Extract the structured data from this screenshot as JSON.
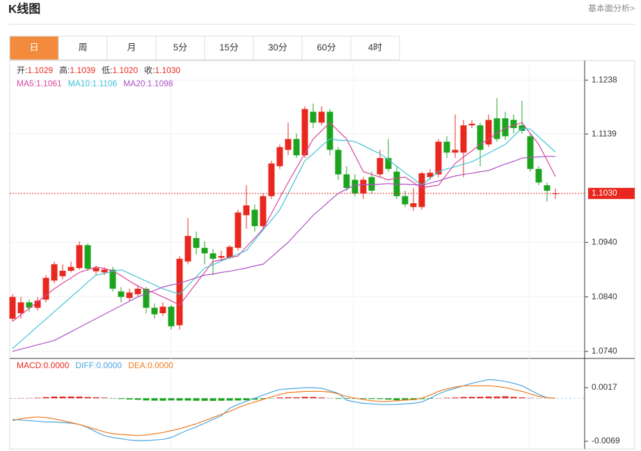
{
  "header": {
    "title": "K线图",
    "link": "基本面分析>"
  },
  "tabs": [
    "日",
    "周",
    "月",
    "5分",
    "15分",
    "30分",
    "60分",
    "4时"
  ],
  "selected_tab": 0,
  "chart_data": [
    {
      "type": "candlestick",
      "info": [
        {
          "label": "开:",
          "value": "1.1029"
        },
        {
          "label": "高:",
          "value": "1.1039"
        },
        {
          "label": "低:",
          "value": "1.1020"
        },
        {
          "label": "收:",
          "value": "1.1030"
        }
      ],
      "ma_info": [
        {
          "label": "MA5: ",
          "value": "1.1061",
          "color": "#d9469b"
        },
        {
          "label": "MA10: ",
          "value": "1.1106",
          "color": "#3fc2d6"
        },
        {
          "label": "MA20: ",
          "value": "1.1098",
          "color": "#b04fc6"
        }
      ],
      "up_color": "#e8281e",
      "down_color": "#1da41f",
      "open": [
        1.08,
        1.081,
        1.083,
        1.082,
        1.0835,
        1.087,
        1.0878,
        1.0888,
        1.0893,
        1.0935,
        1.0887,
        1.0885,
        1.089,
        1.085,
        1.0838,
        1.0845,
        1.0855,
        1.082,
        1.081,
        1.0822,
        1.0788,
        1.0905,
        1.0948,
        1.093,
        1.092,
        1.0912,
        1.0912,
        1.093,
        1.099,
        1.1,
        1.097,
        1.1025,
        1.108,
        1.111,
        1.113,
        1.11,
        1.118,
        1.116,
        1.118,
        1.111,
        1.1065,
        1.1055,
        1.103,
        1.106,
        1.1065,
        1.1095,
        1.107,
        1.1025,
        1.1005,
        1.1005,
        1.106,
        1.1065,
        1.1125,
        1.1105,
        1.1105,
        1.1155,
        1.1155,
        1.112,
        1.1168,
        1.1168,
        1.1165,
        1.1155,
        1.1135,
        1.1075,
        1.1045,
        1.1029
      ],
      "high": [
        1.0845,
        1.084,
        1.0835,
        1.084,
        1.088,
        1.0905,
        1.09,
        1.0905,
        1.0942,
        1.0938,
        1.0897,
        1.0895,
        1.0895,
        1.0858,
        1.0855,
        1.0862,
        1.0858,
        1.0828,
        1.083,
        1.0825,
        1.0915,
        1.0985,
        1.096,
        1.0942,
        1.0928,
        1.0925,
        1.0935,
        1.1,
        1.1045,
        1.101,
        1.103,
        1.109,
        1.112,
        1.116,
        1.114,
        1.119,
        1.1195,
        1.119,
        1.1185,
        1.1115,
        1.108,
        1.1065,
        1.106,
        1.107,
        1.111,
        1.113,
        1.108,
        1.1035,
        1.104,
        1.107,
        1.1075,
        1.113,
        1.1135,
        1.1175,
        1.1165,
        1.1165,
        1.116,
        1.1175,
        1.1205,
        1.118,
        1.1175,
        1.12,
        1.114,
        1.108,
        1.105,
        1.1039
      ],
      "low": [
        1.0795,
        1.08,
        1.0812,
        1.0815,
        1.083,
        1.0865,
        1.0872,
        1.0885,
        1.089,
        1.0888,
        1.088,
        1.088,
        1.085,
        1.083,
        1.0833,
        1.084,
        1.081,
        1.08,
        1.0805,
        1.078,
        1.078,
        1.09,
        1.0918,
        1.09,
        1.088,
        1.0905,
        1.091,
        1.0925,
        1.0965,
        1.096,
        1.0965,
        1.102,
        1.1075,
        1.11,
        1.1095,
        1.1095,
        1.115,
        1.1155,
        1.11,
        1.1055,
        1.1035,
        1.1025,
        1.102,
        1.103,
        1.106,
        1.107,
        1.102,
        1.1005,
        1.0998,
        1.1,
        1.1055,
        1.106,
        1.1095,
        1.1095,
        1.106,
        1.115,
        1.108,
        1.1115,
        1.1125,
        1.1128,
        1.114,
        1.114,
        1.107,
        1.1045,
        1.1015,
        1.102
      ],
      "close": [
        1.084,
        1.083,
        1.082,
        1.0833,
        1.0875,
        1.09,
        1.0888,
        1.0895,
        1.0935,
        1.0892,
        1.0893,
        1.089,
        1.0855,
        1.084,
        1.0848,
        1.0855,
        1.082,
        1.0808,
        1.0822,
        1.0786,
        1.091,
        1.0952,
        1.093,
        1.092,
        1.091,
        1.0915,
        1.0932,
        1.0995,
        1.1008,
        1.097,
        1.1025,
        1.1085,
        1.1115,
        1.113,
        1.11,
        1.1185,
        1.116,
        1.118,
        1.111,
        1.1065,
        1.104,
        1.103,
        1.1055,
        1.1035,
        1.1095,
        1.1075,
        1.1025,
        1.101,
        1.1012,
        1.1067,
        1.1068,
        1.1125,
        1.1105,
        1.111,
        1.1155,
        1.1158,
        1.111,
        1.1165,
        1.113,
        1.1135,
        1.115,
        1.1145,
        1.1075,
        1.105,
        1.1035,
        1.103
      ],
      "series": [
        {
          "name": "MA5",
          "color": "#d9469b",
          "values": [
            1.0795,
            1.0807,
            1.0819,
            1.0831,
            1.0843,
            1.0855,
            1.0865,
            1.0875,
            1.0885,
            1.089,
            1.0895,
            1.0892,
            1.0888,
            1.0879,
            1.0869,
            1.086,
            1.0853,
            1.0847,
            1.084,
            1.0833,
            1.0825,
            1.0845,
            1.0865,
            1.0885,
            1.0905,
            1.0908,
            1.0912,
            1.0915,
            1.0932,
            1.0948,
            1.0965,
            1.0993,
            1.1022,
            1.105,
            1.1077,
            1.1103,
            1.113,
            1.1145,
            1.116,
            1.1145,
            1.113,
            1.11,
            1.107,
            1.1065,
            1.106,
            1.1055,
            1.1058,
            1.106,
            1.105,
            1.104,
            1.1043,
            1.1045,
            1.1065,
            1.1085,
            1.1097,
            1.1108,
            1.112,
            1.113,
            1.114,
            1.115,
            1.1155,
            1.116,
            1.114,
            1.112,
            1.1091,
            1.1061
          ]
        },
        {
          "name": "MA10",
          "color": "#3fc2d6",
          "values": [
            1.0745,
            1.0759,
            1.0772,
            1.0786,
            1.0799,
            1.0813,
            1.0826,
            1.084,
            1.0853,
            1.0867,
            1.088,
            1.0883,
            1.0887,
            1.089,
            1.0883,
            1.0876,
            1.0869,
            1.0862,
            1.0855,
            1.085,
            1.0845,
            1.0861,
            1.0877,
            1.0893,
            1.0899,
            1.0906,
            1.0912,
            1.0919,
            1.0925,
            1.0944,
            1.0963,
            1.0981,
            1.1,
            1.103,
            1.106,
            1.109,
            1.1103,
            1.1117,
            1.113,
            1.1128,
            1.1127,
            1.1125,
            1.1118,
            1.111,
            1.1103,
            1.1092,
            1.108,
            1.1068,
            1.1057,
            1.1045,
            1.1058,
            1.107,
            1.1075,
            1.1079,
            1.1084,
            1.1088,
            1.1096,
            1.1104,
            1.1112,
            1.112,
            1.1135,
            1.115,
            1.1148,
            1.1134,
            1.112,
            1.1106
          ]
        },
        {
          "name": "MA20",
          "color": "#b04fc6",
          "values": [
            1.074,
            1.0744,
            1.0748,
            1.0752,
            1.0756,
            1.076,
            1.0768,
            1.0776,
            1.0784,
            1.0792,
            1.08,
            1.0808,
            1.0816,
            1.0824,
            1.0832,
            1.084,
            1.0846,
            1.0852,
            1.0858,
            1.0862,
            1.0865,
            1.087,
            1.0875,
            1.088,
            1.0882,
            1.0885,
            1.0887,
            1.089,
            1.0893,
            1.0897,
            1.09,
            1.0913,
            1.0927,
            1.094,
            1.0957,
            1.0973,
            1.099,
            1.1003,
            1.1017,
            1.103,
            1.1038,
            1.1045,
            1.1046,
            1.1046,
            1.1047,
            1.1048,
            1.1047,
            1.1047,
            1.1046,
            1.1045,
            1.1049,
            1.1053,
            1.1058,
            1.1062,
            1.1065,
            1.1067,
            1.107,
            1.1072,
            1.1078,
            1.1084,
            1.1089,
            1.1095,
            1.1096,
            1.1097,
            1.1098,
            1.1098
          ]
        }
      ],
      "ylim": [
        1.0727,
        1.1274
      ],
      "yticks": [
        1.1238,
        1.1139,
        {
          "value": 1.094,
          "label": "1.0940"
        },
        {
          "value": 1.084,
          "label": "1.0840"
        },
        {
          "value": 1.074,
          "label": "1.0740"
        }
      ],
      "last_price": {
        "value": 1.103,
        "label": "1.1030",
        "color": "#e8281e"
      },
      "grid": true
    },
    {
      "type": "macd",
      "info": [
        {
          "label": "MACD:",
          "value": "0.0000",
          "color": "#e8281e"
        },
        {
          "label": "DIFF:",
          "value": "0.0000",
          "color": "#4aa6e0"
        },
        {
          "label": "DEA:",
          "value": "0.0000",
          "color": "#f07a1e"
        }
      ],
      "up_color": "#e8281e",
      "down_color": "#1da41f",
      "values": [
        2e-05,
        3e-05,
        4e-05,
        8e-05,
        0.00018,
        0.00027,
        0.00027,
        0.00028,
        0.00027,
        0.0002,
        0.00015,
        0.0001,
        -5e-05,
        -0.00012,
        -0.0002,
        -0.00025,
        -0.00035,
        -0.00038,
        -0.00039,
        -0.00035,
        -0.00037,
        -0.00037,
        -0.0004,
        -0.00041,
        -0.00042,
        -0.0004,
        -0.00038,
        -0.00036,
        -0.00033,
        -0.00023,
        -0.00013,
        -3e-05,
        0.00013,
        0.00016,
        0.00015,
        0.00023,
        0.00021,
        0.00012,
        3e-05,
        -0.0001,
        -9e-05,
        -8e-05,
        -0.0001,
        -0.00012,
        -0.00013,
        -0.00022,
        -0.00032,
        -0.00033,
        -0.00028,
        -0.00014,
        -8e-05,
        3e-05,
        8e-05,
        0.00012,
        0.0002,
        0.00022,
        0.00024,
        0.00028,
        0.00028,
        0.00032,
        0.00022,
        0.00014,
        5e-05,
        2e-05,
        1e-05,
        0
      ],
      "series": [
        {
          "name": "DIFF",
          "color": "#4aa6e0",
          "values": [
            -0.0034,
            -0.0035,
            -0.0036,
            -0.0037,
            -0.0038,
            -0.0038,
            -0.0039,
            -0.004,
            -0.0042,
            -0.0047,
            -0.0054,
            -0.006,
            -0.0063,
            -0.0065,
            -0.0067,
            -0.0068,
            -0.0068,
            -0.0067,
            -0.0066,
            -0.0063,
            -0.0057,
            -0.0051,
            -0.0046,
            -0.004,
            -0.0034,
            -0.0028,
            -0.0016,
            -0.001,
            -0.0005,
            0,
            0.0005,
            0.001,
            0.0014,
            0.0015,
            0.0016,
            0.0017,
            0.0017,
            0.0016,
            0.0012,
            0.0008,
            -0.0003,
            -0.0006,
            -0.0008,
            -0.0009,
            -0.001,
            -0.001,
            -0.001,
            -0.0009,
            -0.0008,
            -0.0006,
            0,
            0.0007,
            0.0012,
            0.0016,
            0.002,
            0.0024,
            0.0027,
            0.003,
            0.0029,
            0.0027,
            0.0024,
            0.002,
            0.0013,
            0.0006,
            0.0001,
            0
          ]
        },
        {
          "name": "DEA",
          "color": "#f07a1e",
          "values": [
            -0.0036,
            -0.0033,
            -0.0031,
            -0.003,
            -0.0031,
            -0.0033,
            -0.0036,
            -0.0039,
            -0.0042,
            -0.0046,
            -0.005,
            -0.0054,
            -0.0057,
            -0.0058,
            -0.0059,
            -0.006,
            -0.0059,
            -0.0057,
            -0.0055,
            -0.0052,
            -0.0049,
            -0.0045,
            -0.0041,
            -0.0036,
            -0.0031,
            -0.0026,
            -0.0021,
            -0.0015,
            -0.001,
            -0.0006,
            -0.0002,
            0.0002,
            0.0006,
            0.0009,
            0.001,
            0.0011,
            0.0011,
            0.0011,
            0.001,
            0.0007,
            0.0003,
            0,
            -0.0002,
            -0.0004,
            -0.0005,
            -0.0005,
            -0.0004,
            -0.0003,
            -0.0002,
            0,
            0.0005,
            0.0011,
            0.0015,
            0.0018,
            0.002,
            0.002,
            0.002,
            0.002,
            0.0019,
            0.0017,
            0.0014,
            0.0011,
            0.0007,
            0.0003,
            0.0001,
            0
          ]
        }
      ],
      "ylim": [
        -0.00813,
        0.00639
      ],
      "yticks": [
        0.0017,
        -0.0069
      ]
    }
  ]
}
